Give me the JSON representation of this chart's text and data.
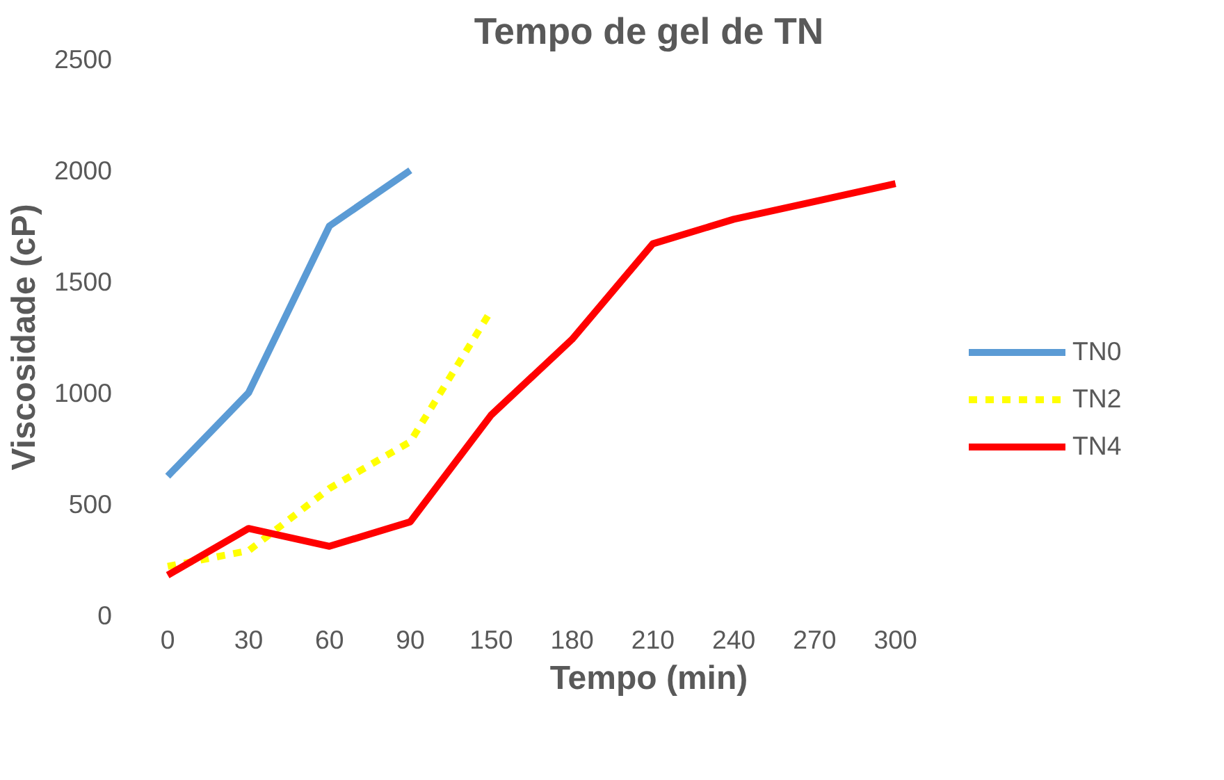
{
  "chart_data": {
    "type": "line",
    "title": "Tempo de gel de TN",
    "xlabel": "Tempo (min)",
    "ylabel": "Viscosidade (cP)",
    "categories": [
      "0",
      "30",
      "60",
      "90",
      "150",
      "180",
      "210",
      "240",
      "270",
      "300"
    ],
    "ylim": [
      0,
      2500
    ],
    "yticks": [
      0,
      500,
      1000,
      1500,
      2000,
      2500
    ],
    "grid": false,
    "legend": "right",
    "marker": "none",
    "series": [
      {
        "name": "TN0",
        "color": "#5b9bd5",
        "line_style": "solid",
        "values": [
          625,
          1000,
          1750,
          2000,
          null,
          null,
          null,
          null,
          null,
          null
        ]
      },
      {
        "name": "TN2",
        "color": "#ffff00",
        "line_style": "dashed",
        "values": [
          220,
          290,
          570,
          780,
          1370,
          null,
          null,
          null,
          null,
          null
        ]
      },
      {
        "name": "TN4",
        "color": "#ff0000",
        "line_style": "solid",
        "values": [
          180,
          390,
          310,
          420,
          900,
          1240,
          1670,
          1780,
          1860,
          1940
        ]
      }
    ]
  }
}
